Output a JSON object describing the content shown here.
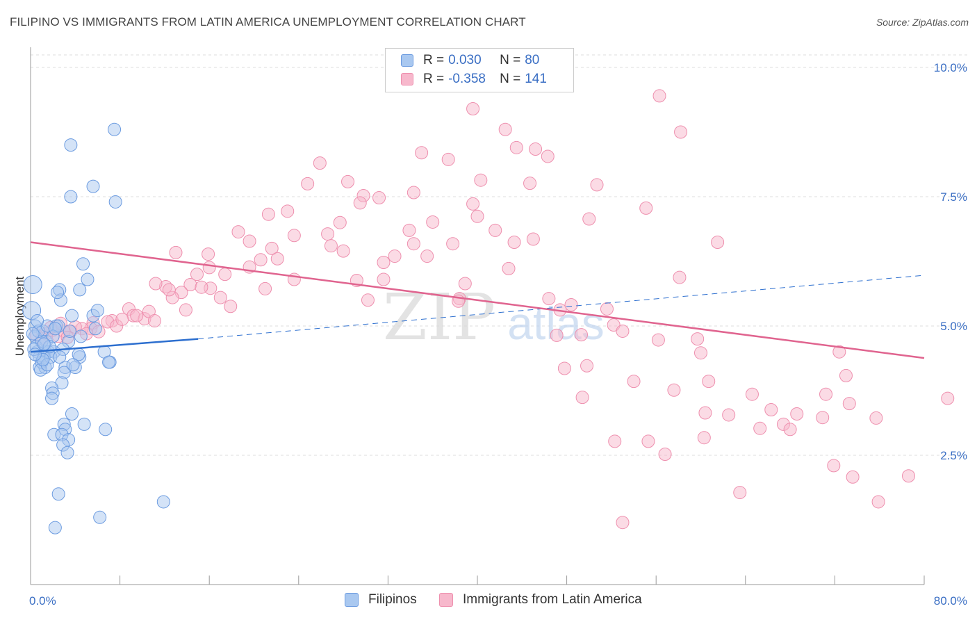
{
  "title": "FILIPINO VS IMMIGRANTS FROM LATIN AMERICA UNEMPLOYMENT CORRELATION CHART",
  "source": "Source: ZipAtlas.com",
  "watermark": {
    "zip": "ZIP",
    "atlas": "atlas"
  },
  "legend": {
    "row1": {
      "r_label": "R =",
      "r_value": "0.030",
      "n_label": "N =",
      "n_value": "80"
    },
    "row2": {
      "r_label": "R =",
      "r_value": "-0.358",
      "n_label": "N =",
      "n_value": "141"
    }
  },
  "bottom_legend": {
    "series1": "Filipinos",
    "series2": "Immigrants from Latin America"
  },
  "colors": {
    "blue_fill": "#a9c8f0",
    "blue_stroke": "#6b9be0",
    "blue_line": "#2d6fcf",
    "pink_fill": "#f7b8cc",
    "pink_stroke": "#ee8fae",
    "pink_line": "#e0648f",
    "axis_text": "#3b6fc4",
    "grid": "#dddddd"
  },
  "chart_data": {
    "type": "scatter",
    "title": "FILIPINO VS IMMIGRANTS FROM LATIN AMERICA UNEMPLOYMENT CORRELATION CHART",
    "xlabel": "",
    "ylabel": "Unemployment",
    "xlim": [
      0,
      80
    ],
    "ylim": [
      0,
      10.5
    ],
    "x_tick_labels": [
      "0.0%",
      "80.0%"
    ],
    "y_ticks": [
      2.5,
      5.0,
      7.5,
      10.0
    ],
    "y_tick_labels": [
      "2.5%",
      "5.0%",
      "7.5%",
      "10.0%"
    ],
    "series": [
      {
        "name": "Filipinos",
        "R": 0.03,
        "N": 80,
        "trend": {
          "x1": 0,
          "y1": 4.5,
          "x2": 15,
          "y2": 4.75,
          "dash_to_x": 80,
          "dash_to_y": 5.98
        },
        "points": [
          [
            3.6,
            8.5
          ],
          [
            7.5,
            8.8
          ],
          [
            3.6,
            7.5
          ],
          [
            5.6,
            7.7
          ],
          [
            7.6,
            7.4
          ],
          [
            4.7,
            6.2
          ],
          [
            5.1,
            5.9
          ],
          [
            0.2,
            5.8
          ],
          [
            2.6,
            5.7
          ],
          [
            4.4,
            5.7
          ],
          [
            0.1,
            5.3
          ],
          [
            2.7,
            5.5
          ],
          [
            5.6,
            5.2
          ],
          [
            6.0,
            5.3
          ],
          [
            3.7,
            5.2
          ],
          [
            2.3,
            5.0
          ],
          [
            2.5,
            5.0
          ],
          [
            0.4,
            5.0
          ],
          [
            1.1,
            4.9
          ],
          [
            0.4,
            4.8
          ],
          [
            1.4,
            4.7
          ],
          [
            3.4,
            4.7
          ],
          [
            0.6,
            4.5
          ],
          [
            1.3,
            4.5
          ],
          [
            1.6,
            4.5
          ],
          [
            2.1,
            4.5
          ],
          [
            0.8,
            4.4
          ],
          [
            1.2,
            4.4
          ],
          [
            4.4,
            4.4
          ],
          [
            6.6,
            4.5
          ],
          [
            7.1,
            4.3
          ],
          [
            0.8,
            4.2
          ],
          [
            1.3,
            4.2
          ],
          [
            3.1,
            4.2
          ],
          [
            4.0,
            4.2
          ],
          [
            1.0,
            4.3
          ],
          [
            3.0,
            4.1
          ],
          [
            1.8,
            4.4
          ],
          [
            0.5,
            4.6
          ],
          [
            1.0,
            4.7
          ],
          [
            2.0,
            4.8
          ],
          [
            4.5,
            4.8
          ],
          [
            2.8,
            3.9
          ],
          [
            1.9,
            3.8
          ],
          [
            2.0,
            3.7
          ],
          [
            1.9,
            3.6
          ],
          [
            3.7,
            3.3
          ],
          [
            3.0,
            3.1
          ],
          [
            4.8,
            3.1
          ],
          [
            3.1,
            3.0
          ],
          [
            6.7,
            3.0
          ],
          [
            2.1,
            2.9
          ],
          [
            2.8,
            2.9
          ],
          [
            3.4,
            2.8
          ],
          [
            2.9,
            2.7
          ],
          [
            3.3,
            2.55
          ],
          [
            2.5,
            1.75
          ],
          [
            6.2,
            1.3
          ],
          [
            2.2,
            1.1
          ],
          [
            11.9,
            1.6
          ],
          [
            0.7,
            4.9
          ],
          [
            1.5,
            5.0
          ],
          [
            2.2,
            4.95
          ],
          [
            3.5,
            4.9
          ],
          [
            0.3,
            4.55
          ],
          [
            1.7,
            4.6
          ],
          [
            2.9,
            4.55
          ],
          [
            0.9,
            4.15
          ],
          [
            1.5,
            4.25
          ],
          [
            4.3,
            4.45
          ],
          [
            7.0,
            4.3
          ],
          [
            5.8,
            4.95
          ],
          [
            0.6,
            5.1
          ],
          [
            2.4,
            5.65
          ],
          [
            1.1,
            4.35
          ],
          [
            3.8,
            4.25
          ],
          [
            0.2,
            4.85
          ],
          [
            1.2,
            4.65
          ],
          [
            2.6,
            4.4
          ],
          [
            0.4,
            4.45
          ]
        ]
      },
      {
        "name": "Immigrants from Latin America",
        "R": -0.358,
        "N": 141,
        "trend": {
          "x1": 0,
          "y1": 6.62,
          "x2": 80,
          "y2": 4.38
        },
        "points": [
          [
            56.3,
            9.45
          ],
          [
            39.6,
            9.2
          ],
          [
            58.2,
            8.75
          ],
          [
            42.5,
            8.8
          ],
          [
            43.5,
            8.45
          ],
          [
            35.0,
            8.35
          ],
          [
            45.2,
            8.42
          ],
          [
            46.3,
            8.28
          ],
          [
            37.4,
            8.22
          ],
          [
            25.9,
            8.15
          ],
          [
            28.4,
            7.79
          ],
          [
            24.8,
            7.75
          ],
          [
            40.3,
            7.82
          ],
          [
            44.7,
            7.76
          ],
          [
            50.7,
            7.73
          ],
          [
            34.3,
            7.58
          ],
          [
            29.8,
            7.52
          ],
          [
            31.2,
            7.48
          ],
          [
            29.5,
            7.38
          ],
          [
            39.6,
            7.36
          ],
          [
            40.0,
            7.12
          ],
          [
            23.0,
            7.22
          ],
          [
            21.3,
            7.16
          ],
          [
            55.1,
            7.28
          ],
          [
            50.0,
            7.07
          ],
          [
            36.0,
            7.01
          ],
          [
            27.7,
            7.0
          ],
          [
            33.9,
            6.85
          ],
          [
            41.6,
            6.85
          ],
          [
            45.0,
            6.68
          ],
          [
            18.6,
            6.82
          ],
          [
            26.6,
            6.78
          ],
          [
            23.6,
            6.75
          ],
          [
            19.6,
            6.64
          ],
          [
            21.6,
            6.5
          ],
          [
            61.5,
            6.62
          ],
          [
            43.3,
            6.62
          ],
          [
            34.3,
            6.59
          ],
          [
            37.8,
            6.59
          ],
          [
            26.9,
            6.55
          ],
          [
            28.0,
            6.45
          ],
          [
            15.9,
            6.39
          ],
          [
            35.5,
            6.35
          ],
          [
            32.6,
            6.35
          ],
          [
            13.0,
            6.42
          ],
          [
            20.6,
            6.28
          ],
          [
            22.1,
            6.3
          ],
          [
            31.6,
            6.23
          ],
          [
            16.0,
            6.13
          ],
          [
            19.6,
            6.14
          ],
          [
            42.8,
            6.11
          ],
          [
            14.9,
            6.0
          ],
          [
            17.4,
            6.0
          ],
          [
            23.6,
            5.9
          ],
          [
            29.2,
            5.88
          ],
          [
            38.9,
            5.82
          ],
          [
            31.6,
            5.9
          ],
          [
            58.1,
            5.94
          ],
          [
            16.1,
            5.73
          ],
          [
            21.0,
            5.72
          ],
          [
            12.1,
            5.76
          ],
          [
            14.3,
            5.8
          ],
          [
            11.2,
            5.82
          ],
          [
            13.5,
            5.65
          ],
          [
            12.7,
            5.55
          ],
          [
            15.3,
            5.75
          ],
          [
            17.0,
            5.55
          ],
          [
            38.4,
            5.53
          ],
          [
            46.4,
            5.53
          ],
          [
            38.3,
            5.48
          ],
          [
            30.2,
            5.5
          ],
          [
            48.4,
            5.41
          ],
          [
            17.9,
            5.38
          ],
          [
            51.6,
            5.33
          ],
          [
            47.4,
            5.31
          ],
          [
            13.9,
            5.31
          ],
          [
            8.8,
            5.33
          ],
          [
            7.3,
            5.1
          ],
          [
            9.2,
            5.2
          ],
          [
            10.2,
            5.14
          ],
          [
            10.6,
            5.28
          ],
          [
            11.1,
            5.1
          ],
          [
            6.9,
            5.08
          ],
          [
            5.6,
            5.06
          ],
          [
            5.4,
            4.95
          ],
          [
            4.6,
            4.95
          ],
          [
            3.6,
            4.9
          ],
          [
            2.0,
            4.92
          ],
          [
            1.4,
            4.85
          ],
          [
            2.5,
            4.8
          ],
          [
            3.0,
            4.9
          ],
          [
            6.1,
            4.89
          ],
          [
            4.0,
            4.98
          ],
          [
            7.7,
            5.0
          ],
          [
            2.7,
            5.05
          ],
          [
            1.8,
            4.97
          ],
          [
            5.0,
            4.85
          ],
          [
            3.3,
            4.78
          ],
          [
            1.0,
            4.76
          ],
          [
            0.5,
            4.83
          ],
          [
            9.5,
            5.2
          ],
          [
            12.4,
            5.7
          ],
          [
            8.2,
            5.13
          ],
          [
            52.2,
            5.02
          ],
          [
            53.0,
            4.9
          ],
          [
            49.3,
            4.83
          ],
          [
            56.2,
            4.73
          ],
          [
            59.7,
            4.75
          ],
          [
            47.1,
            4.82
          ],
          [
            60.0,
            4.48
          ],
          [
            72.4,
            4.5
          ],
          [
            47.8,
            4.18
          ],
          [
            49.8,
            4.23
          ],
          [
            73.0,
            4.04
          ],
          [
            54.0,
            3.93
          ],
          [
            60.7,
            3.93
          ],
          [
            57.6,
            3.76
          ],
          [
            71.2,
            3.68
          ],
          [
            64.6,
            3.68
          ],
          [
            82.1,
            3.6
          ],
          [
            49.4,
            3.62
          ],
          [
            73.3,
            3.5
          ],
          [
            66.3,
            3.38
          ],
          [
            68.6,
            3.3
          ],
          [
            60.4,
            3.32
          ],
          [
            75.7,
            3.22
          ],
          [
            62.5,
            3.28
          ],
          [
            70.9,
            3.23
          ],
          [
            67.4,
            3.1
          ],
          [
            68.0,
            3.0
          ],
          [
            65.3,
            3.02
          ],
          [
            60.3,
            2.84
          ],
          [
            55.3,
            2.77
          ],
          [
            52.3,
            2.77
          ],
          [
            56.8,
            2.52
          ],
          [
            71.9,
            2.3
          ],
          [
            73.6,
            2.08
          ],
          [
            78.6,
            2.1
          ],
          [
            63.5,
            1.78
          ],
          [
            75.9,
            1.6
          ],
          [
            53.0,
            1.2
          ]
        ]
      }
    ]
  }
}
